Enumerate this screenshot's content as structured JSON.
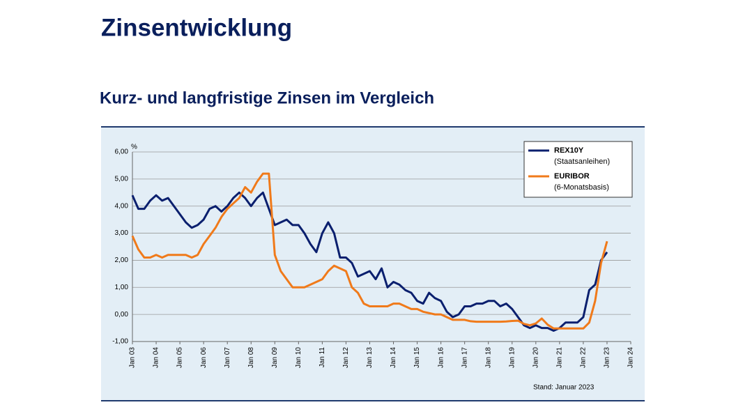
{
  "header": {
    "title": "Zinsentwicklung",
    "subtitle": "Kurz- und langfristige Zinsen im Vergleich"
  },
  "chart_data": {
    "type": "line",
    "y_unit": "%",
    "note": "Stand: Januar 2023",
    "x": [
      "2003-01",
      "2003-04",
      "2003-07",
      "2003-10",
      "2004-01",
      "2004-04",
      "2004-07",
      "2004-10",
      "2005-01",
      "2005-04",
      "2005-07",
      "2005-10",
      "2006-01",
      "2006-04",
      "2006-07",
      "2006-10",
      "2007-01",
      "2007-04",
      "2007-07",
      "2007-10",
      "2008-01",
      "2008-04",
      "2008-07",
      "2008-10",
      "2009-01",
      "2009-04",
      "2009-07",
      "2009-10",
      "2010-01",
      "2010-04",
      "2010-07",
      "2010-10",
      "2011-01",
      "2011-04",
      "2011-07",
      "2011-10",
      "2012-01",
      "2012-04",
      "2012-07",
      "2012-10",
      "2013-01",
      "2013-04",
      "2013-07",
      "2013-10",
      "2014-01",
      "2014-04",
      "2014-07",
      "2014-10",
      "2015-01",
      "2015-04",
      "2015-07",
      "2015-10",
      "2016-01",
      "2016-04",
      "2016-07",
      "2016-10",
      "2017-01",
      "2017-04",
      "2017-07",
      "2017-10",
      "2018-01",
      "2018-04",
      "2018-07",
      "2018-10",
      "2019-01",
      "2019-04",
      "2019-07",
      "2019-10",
      "2020-01",
      "2020-04",
      "2020-07",
      "2020-10",
      "2021-01",
      "2021-04",
      "2021-07",
      "2021-10",
      "2022-01",
      "2022-04",
      "2022-07",
      "2022-10",
      "2023-01"
    ],
    "series": [
      {
        "name": "REX10Y",
        "description": "(Staatsanleihen)",
        "color": "#0a1f6e",
        "values": [
          4.4,
          3.9,
          3.9,
          4.2,
          4.4,
          4.2,
          4.3,
          4.0,
          3.7,
          3.4,
          3.2,
          3.3,
          3.5,
          3.9,
          4.0,
          3.8,
          4.0,
          4.3,
          4.5,
          4.3,
          4.0,
          4.3,
          4.5,
          3.9,
          3.3,
          3.4,
          3.5,
          3.3,
          3.3,
          3.0,
          2.6,
          2.3,
          3.0,
          3.4,
          3.0,
          2.1,
          2.1,
          1.9,
          1.4,
          1.5,
          1.6,
          1.3,
          1.7,
          1.0,
          1.2,
          1.1,
          0.9,
          0.8,
          0.5,
          0.4,
          0.8,
          0.6,
          0.5,
          0.1,
          -0.1,
          0.0,
          0.3,
          0.3,
          0.4,
          0.4,
          0.5,
          0.5,
          0.3,
          0.4,
          0.2,
          -0.1,
          -0.4,
          -0.5,
          -0.4,
          -0.5,
          -0.5,
          -0.6,
          -0.5,
          -0.3,
          -0.3,
          -0.3,
          -0.1,
          0.9,
          1.1,
          2.0,
          2.3
        ]
      },
      {
        "name": "EURIBOR",
        "description": "(6-Monatsbasis)",
        "color": "#f07a1a",
        "values": [
          2.9,
          2.4,
          2.1,
          2.1,
          2.2,
          2.1,
          2.2,
          2.2,
          2.2,
          2.2,
          2.1,
          2.2,
          2.6,
          2.9,
          3.2,
          3.6,
          3.9,
          4.1,
          4.3,
          4.7,
          4.5,
          4.9,
          5.2,
          5.2,
          2.2,
          1.6,
          1.3,
          1.0,
          1.0,
          1.0,
          1.1,
          1.2,
          1.3,
          1.6,
          1.8,
          1.7,
          1.6,
          1.0,
          0.8,
          0.4,
          0.3,
          0.3,
          0.3,
          0.3,
          0.4,
          0.4,
          0.3,
          0.2,
          0.2,
          0.1,
          0.05,
          0.0,
          0.0,
          -0.1,
          -0.2,
          -0.2,
          -0.2,
          -0.25,
          -0.27,
          -0.27,
          -0.27,
          -0.27,
          -0.27,
          -0.26,
          -0.24,
          -0.23,
          -0.35,
          -0.4,
          -0.33,
          -0.15,
          -0.38,
          -0.52,
          -0.52,
          -0.52,
          -0.52,
          -0.52,
          -0.52,
          -0.3,
          0.5,
          1.9,
          2.7
        ]
      }
    ],
    "xlim": [
      "2003-01",
      "2024-01"
    ],
    "xticks": [
      {
        "value": "2003-01",
        "label": "Jan 03"
      },
      {
        "value": "2004-01",
        "label": "Jan 04"
      },
      {
        "value": "2005-01",
        "label": "Jan 05"
      },
      {
        "value": "2006-01",
        "label": "Jan 06"
      },
      {
        "value": "2007-01",
        "label": "Jan 07"
      },
      {
        "value": "2008-01",
        "label": "Jan 08"
      },
      {
        "value": "2009-01",
        "label": "Jan 09"
      },
      {
        "value": "2010-01",
        "label": "Jan 10"
      },
      {
        "value": "2011-01",
        "label": "Jan 11"
      },
      {
        "value": "2012-01",
        "label": "Jan 12"
      },
      {
        "value": "2013-01",
        "label": "Jan 13"
      },
      {
        "value": "2014-01",
        "label": "Jan 14"
      },
      {
        "value": "2015-01",
        "label": "Jan 15"
      },
      {
        "value": "2016-01",
        "label": "Jan 16"
      },
      {
        "value": "2017-01",
        "label": "Jan 17"
      },
      {
        "value": "2018-01",
        "label": "Jan 18"
      },
      {
        "value": "2019-01",
        "label": "Jan 19"
      },
      {
        "value": "2020-01",
        "label": "Jan 20"
      },
      {
        "value": "2021-01",
        "label": "Jan 21"
      },
      {
        "value": "2022-01",
        "label": "Jan 22"
      },
      {
        "value": "2023-01",
        "label": "Jan 23"
      },
      {
        "value": "2024-01",
        "label": "Jan 24"
      }
    ],
    "ylim": [
      -1,
      6
    ],
    "yticks": [
      {
        "value": -1,
        "label": "-1,00"
      },
      {
        "value": 0,
        "label": "0,00"
      },
      {
        "value": 1,
        "label": "1,00"
      },
      {
        "value": 2,
        "label": "2,00"
      },
      {
        "value": 3,
        "label": "3,00"
      },
      {
        "value": 4,
        "label": "4,00"
      },
      {
        "value": 5,
        "label": "5,00"
      },
      {
        "value": 6,
        "label": "6,00"
      }
    ],
    "grid": true,
    "legend": "top-right"
  }
}
